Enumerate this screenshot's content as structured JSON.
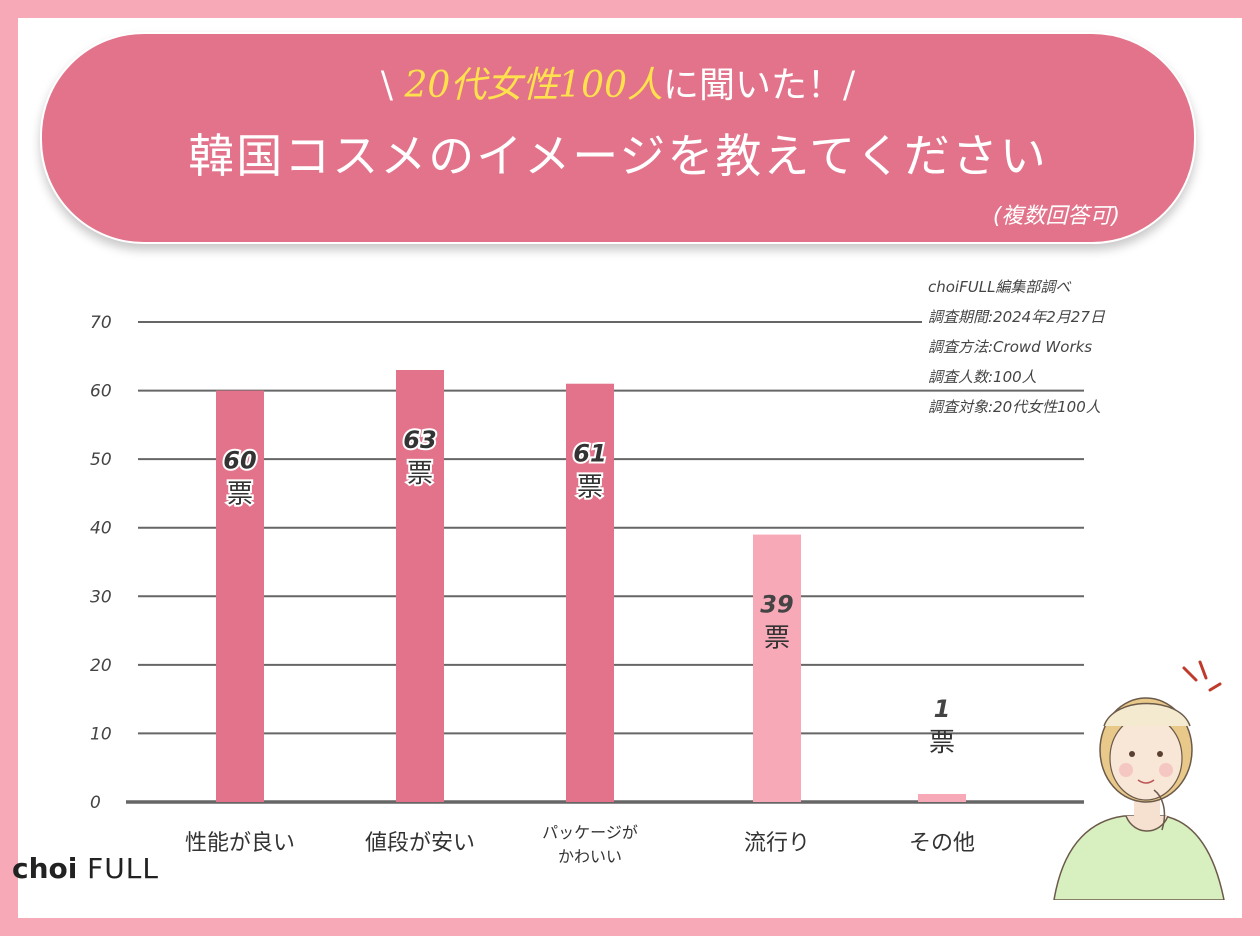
{
  "header": {
    "line1_prefix": "\\ ",
    "line1_highlight": "20代女性100人",
    "line1_suffix": "に聞いた！/",
    "title": "韓国コスメのイメージを教えてください",
    "note": "(複数回答可)"
  },
  "survey_info": [
    "choiFULL編集部調べ",
    "調査期間:2024年2月27日",
    "調査方法:Crowd Works",
    "調査人数:100人",
    "調査対象:20代女性100人"
  ],
  "brand": {
    "choi": "choi",
    "full": "FULL"
  },
  "colors": {
    "dark_bar": "#e3738a",
    "light_bar": "#f8a9b8",
    "grid": "#666666",
    "background": "#f8a9b8"
  },
  "chart_data": {
    "type": "bar",
    "categories": [
      "性能が良い",
      "値段が安い",
      "パッケージが\nかわいい",
      "流行り",
      "その他"
    ],
    "values": [
      60,
      63,
      61,
      39,
      1
    ],
    "value_labels": [
      "60",
      "63",
      "61",
      "39",
      "1"
    ],
    "unit_label": "票",
    "ylim": [
      0,
      70
    ],
    "yticks": [
      0,
      10,
      20,
      30,
      40,
      50,
      60,
      70
    ],
    "grid": true,
    "bar_colors": [
      "#e3738a",
      "#e3738a",
      "#e3738a",
      "#f8a9b8",
      "#f8a9b8"
    ]
  }
}
